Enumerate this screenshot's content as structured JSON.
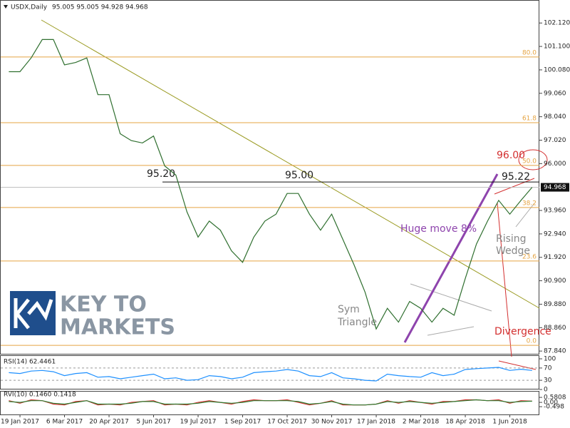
{
  "header": {
    "symbol": "USDX,Daily",
    "ohlc": "95.005 95.005 94.928 94.968"
  },
  "watermark": [
    "KEY TO",
    "MARKETS"
  ],
  "annotations": {
    "level_a": "95.20",
    "level_b": "95.00",
    "level_c": "95.22",
    "target": "96.00",
    "move": "Huge move 8%",
    "triangle": [
      "Sym",
      "Triangle"
    ],
    "wedge": [
      "Rising",
      "Wedge"
    ],
    "divergence": "Divergence"
  },
  "chart_data": [
    {
      "type": "line",
      "categories": [
        null,
        "19 Jan 2017",
        null,
        null,
        null,
        "6 Mar 2017",
        null,
        null,
        null,
        "20 Apr 2017",
        null,
        null,
        null,
        "5 Jun 2017",
        null,
        null,
        null,
        "19 Jul 2017",
        null,
        null,
        null,
        "1 Sep 2017",
        null,
        null,
        null,
        "17 Oct 2017",
        null,
        null,
        null,
        "30 Nov 2017",
        null,
        null,
        null,
        "17 Jan 2018",
        null,
        null,
        null,
        "2 Mar 2018",
        null,
        null,
        null,
        "18 Apr 2018",
        null,
        null,
        null,
        "1 Jun 2018",
        null,
        null
      ],
      "color": "#2f6f2f",
      "values": [
        100.0,
        100.0,
        100.6,
        101.4,
        101.4,
        100.3,
        100.4,
        100.6,
        99.0,
        99.0,
        97.3,
        97.0,
        96.9,
        97.2,
        95.9,
        95.5,
        93.9,
        92.8,
        93.5,
        93.1,
        92.2,
        91.7,
        92.8,
        93.5,
        93.8,
        94.7,
        94.7,
        93.8,
        93.1,
        93.8,
        92.7,
        91.6,
        90.4,
        88.8,
        89.7,
        89.1,
        90.0,
        89.7,
        89.1,
        89.7,
        89.4,
        91.0,
        92.5,
        93.5,
        94.4,
        93.8,
        94.4,
        94.968
      ],
      "ylim": [
        87.72,
        103.09
      ],
      "yticks": [
        {
          "value": 102.12,
          "label": "102.120"
        },
        {
          "value": 101.1,
          "label": "101.100"
        },
        {
          "value": 100.08,
          "label": "100.080"
        },
        {
          "value": 99.06,
          "label": "99.060"
        },
        {
          "value": 98.04,
          "label": "98.040"
        },
        {
          "value": 97.02,
          "label": "97.020"
        },
        {
          "value": 96.0,
          "label": "96.000"
        },
        {
          "value": 93.96,
          "label": "93.960"
        },
        {
          "value": 92.94,
          "label": "92.940"
        },
        {
          "value": 91.92,
          "label": "91.920"
        },
        {
          "value": 90.9,
          "label": "90.900"
        },
        {
          "value": 89.88,
          "label": "89.880"
        },
        {
          "value": 88.86,
          "label": "88.860"
        },
        {
          "value": 87.84,
          "label": "87.840"
        }
      ],
      "current_price": {
        "value": 94.968,
        "label": "94.968"
      },
      "fibonacci": [
        {
          "label": "0.0",
          "price": 88.09
        },
        {
          "label": "23.6",
          "price": 91.76
        },
        {
          "label": "38.2",
          "price": 94.09
        },
        {
          "label": "50.0",
          "price": 95.92
        },
        {
          "label": "61.8",
          "price": 97.78
        },
        {
          "label": "80.0",
          "price": 100.64
        }
      ],
      "fib_color": "#e5a443",
      "level": 95.2
    },
    {
      "type": "line",
      "title": "RSI(14) 62.4461",
      "color": "#1e90ff",
      "values": [
        55,
        52,
        60,
        62,
        58,
        45,
        52,
        55,
        40,
        42,
        35,
        40,
        45,
        50,
        35,
        38,
        30,
        32,
        45,
        42,
        35,
        40,
        55,
        58,
        60,
        65,
        60,
        45,
        42,
        55,
        38,
        35,
        30,
        28,
        50,
        45,
        42,
        40,
        55,
        45,
        50,
        65,
        68,
        70,
        72,
        62,
        66,
        62
      ],
      "ylim": [
        0,
        100
      ],
      "yticks": [
        100,
        70,
        30,
        0
      ]
    },
    {
      "type": "line",
      "title": "RVI(10) 0.1460 0.1418",
      "series": [
        {
          "color": "#d32f2f",
          "values": [
            0.2,
            -0.1,
            0.3,
            0.2,
            -0.2,
            -0.3,
            0.1,
            0.2,
            -0.3,
            -0.2,
            -0.3,
            0.0,
            0.1,
            0.2,
            -0.3,
            -0.2,
            -0.3,
            0.0,
            0.2,
            0.0,
            -0.2,
            0.1,
            0.3,
            0.2,
            0.2,
            0.3,
            0.0,
            -0.3,
            -0.1,
            0.2,
            -0.3,
            -0.3,
            -0.3,
            -0.2,
            0.2,
            -0.1,
            0.2,
            0.0,
            -0.2,
            0.1,
            0.1,
            0.3,
            0.3,
            0.2,
            0.3,
            -0.1,
            0.2,
            0.146
          ]
        },
        {
          "color": "#2e7d32",
          "values": [
            0.1,
            0.0,
            0.2,
            0.2,
            -0.1,
            -0.2,
            0.0,
            0.2,
            -0.2,
            -0.2,
            -0.2,
            -0.1,
            0.1,
            0.1,
            -0.2,
            -0.2,
            -0.2,
            -0.1,
            0.1,
            0.0,
            -0.1,
            0.0,
            0.2,
            0.2,
            0.2,
            0.2,
            0.1,
            -0.2,
            -0.1,
            0.1,
            -0.2,
            -0.3,
            -0.3,
            -0.2,
            0.1,
            0.0,
            0.1,
            0.0,
            -0.1,
            0.0,
            0.1,
            0.2,
            0.3,
            0.2,
            0.2,
            0.0,
            0.1,
            0.1418
          ]
        }
      ],
      "ylim": [
        -1.4,
        1.25
      ],
      "yticks": [
        {
          "value": 0.5808,
          "label": "0.5808"
        },
        {
          "value": 0.0,
          "label": "0.00"
        },
        {
          "value": -0.498,
          "label": "-0.498"
        }
      ]
    }
  ]
}
